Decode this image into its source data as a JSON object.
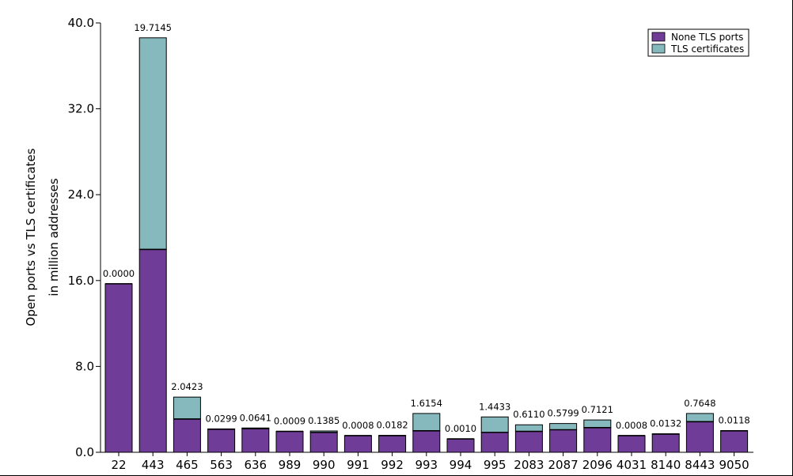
{
  "chart_data": {
    "type": "bar",
    "stacked": true,
    "categories": [
      "22",
      "443",
      "465",
      "563",
      "636",
      "989",
      "990",
      "991",
      "992",
      "993",
      "994",
      "995",
      "2083",
      "2087",
      "2096",
      "4031",
      "8140",
      "8443",
      "9050"
    ],
    "series": [
      {
        "name": "None TLS ports",
        "color": "#6f3d97",
        "values": [
          15.7,
          18.9,
          3.1,
          2.15,
          2.2,
          1.95,
          1.85,
          1.55,
          1.55,
          2.0,
          1.25,
          1.85,
          1.95,
          2.1,
          2.3,
          1.55,
          1.7,
          2.85,
          2.0
        ]
      },
      {
        "name": "TLS certificates",
        "color": "#85b9bd",
        "values": [
          0.0,
          19.7145,
          2.0423,
          0.0299,
          0.0641,
          0.0009,
          0.1385,
          0.0008,
          0.0182,
          1.6154,
          0.001,
          1.4433,
          0.611,
          0.5799,
          0.7121,
          0.0008,
          0.0132,
          0.7648,
          0.0118
        ]
      }
    ],
    "data_labels": [
      "0.0000",
      "19.7145",
      "2.0423",
      "0.0299",
      "0.0641",
      "0.0009",
      "0.1385",
      "0.0008",
      "0.0182",
      "1.6154",
      "0.0010",
      "1.4433",
      "0.6110",
      "0.5799",
      "0.7121",
      "0.0008",
      "0.0132",
      "0.7648",
      "0.0118"
    ],
    "ylabel_line1": "Open ports vs TLS certificates",
    "ylabel_line2": "in million addresses",
    "xlabel": "",
    "ylim": [
      0,
      40
    ],
    "yticks": [
      0,
      8,
      16,
      24,
      32,
      40
    ],
    "ytick_labels": [
      "0.0",
      "8.0",
      "16.0",
      "24.0",
      "32.0",
      "40.0"
    ],
    "grid": false,
    "legend_position": "top-right"
  }
}
